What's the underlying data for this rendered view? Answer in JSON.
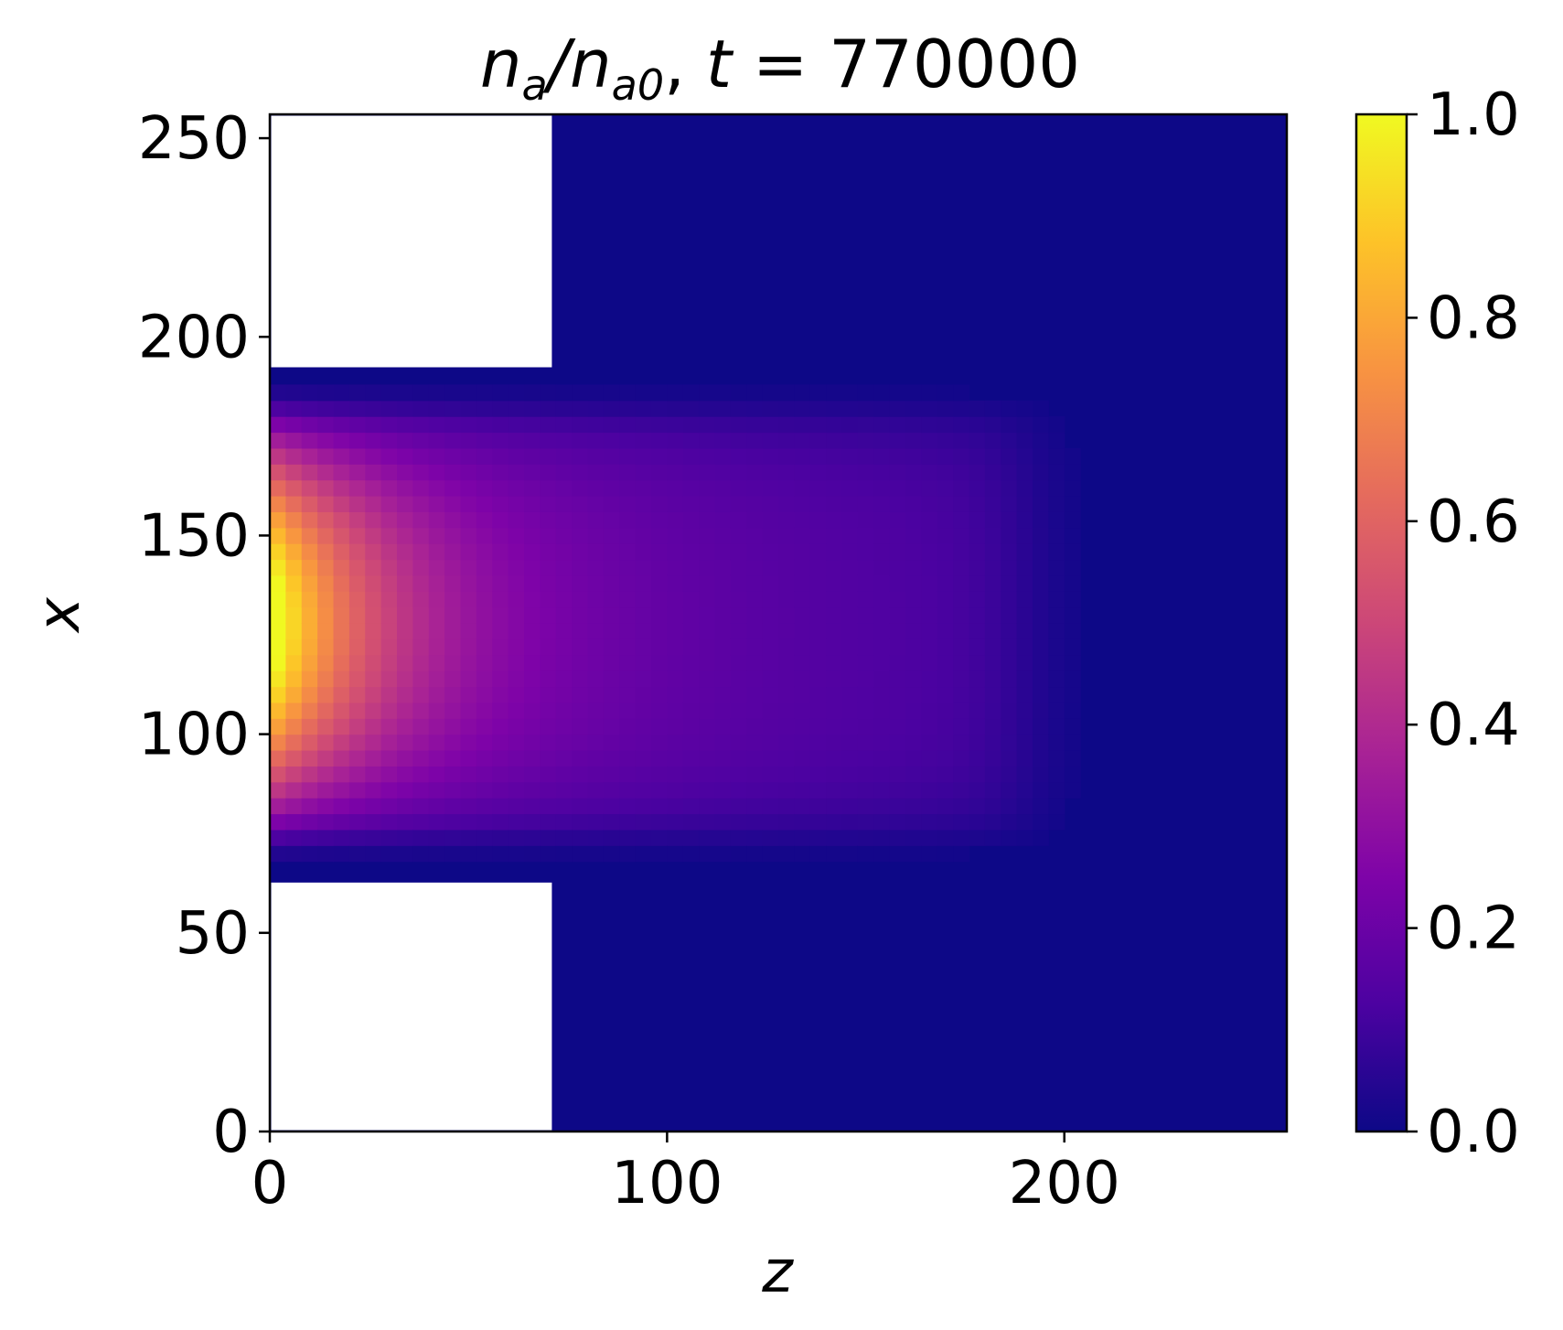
{
  "chart_data": {
    "type": "heatmap",
    "title": {
      "main": "n",
      "sub1": "a",
      "slash": "/n",
      "sub2": "a0",
      "sep": ", ",
      "tvar": "t",
      "eq": " = 770000"
    },
    "xlabel": "z",
    "ylabel": "x",
    "xlim": [
      0,
      256
    ],
    "ylim": [
      0,
      256
    ],
    "xticks": [
      0,
      100,
      200
    ],
    "xtick_labels": [
      "0",
      "100",
      "200"
    ],
    "yticks": [
      0,
      50,
      100,
      150,
      200,
      250
    ],
    "ytick_labels": [
      "0",
      "50",
      "100",
      "150",
      "200",
      "250"
    ],
    "colormap": "plasma",
    "colorbar": {
      "vmin": 0.0,
      "vmax": 1.0,
      "ticks": [
        0.0,
        0.2,
        0.4,
        0.6,
        0.8,
        1.0
      ],
      "tick_labels": [
        "0.0",
        "0.2",
        "0.4",
        "0.6",
        "0.8",
        "1.0"
      ]
    },
    "masked_regions": [
      {
        "z": [
          0,
          71
        ],
        "x": [
          0,
          63
        ]
      },
      {
        "z": [
          0,
          71
        ],
        "x": [
          192,
          256
        ]
      }
    ],
    "density_profile": {
      "channel_x": [
        63,
        192
      ],
      "peak_center": {
        "z": 0,
        "x": 128,
        "value": 1.0
      },
      "plume_x": [
        72,
        184
      ],
      "plume_end_z": 190,
      "background_value": 0.0
    },
    "grid": false
  }
}
